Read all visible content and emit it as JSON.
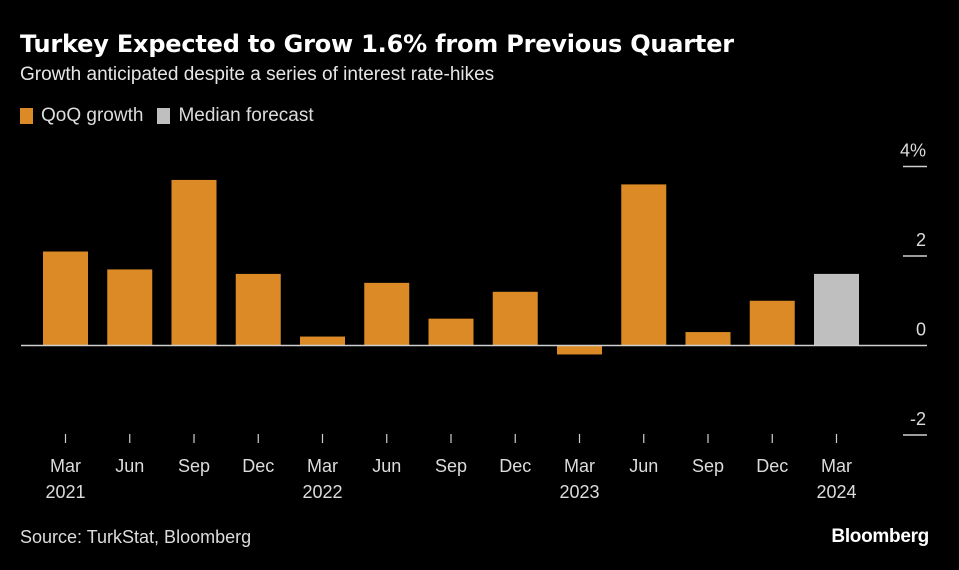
{
  "header": {
    "title": "Turkey Expected to Grow 1.6% from Previous Quarter",
    "subtitle": "Growth anticipated despite a series of interest rate-hikes"
  },
  "legend": [
    {
      "label": "QoQ growth",
      "color": "#DB8A26"
    },
    {
      "label": "Median forecast",
      "color": "#BFBFBF"
    }
  ],
  "footer": {
    "source": "Source: TurkStat, Bloomberg",
    "brand": "Bloomberg"
  },
  "chart_data": {
    "type": "bar",
    "title": "Turkey Expected to Grow 1.6% from Previous Quarter",
    "subtitle": "Growth anticipated despite a series of interest rate-hikes",
    "xlabel": "",
    "ylabel": "",
    "ylim": [
      -2,
      4
    ],
    "yticks": [
      {
        "value": 4,
        "label": "4%"
      },
      {
        "value": 2,
        "label": "2"
      },
      {
        "value": 0,
        "label": "0"
      },
      {
        "value": -2,
        "label": "-2"
      }
    ],
    "categories": [
      "Mar 2021",
      "Jun 2021",
      "Sep 2021",
      "Dec 2021",
      "Mar 2022",
      "Jun 2022",
      "Sep 2022",
      "Dec 2022",
      "Mar 2023",
      "Jun 2023",
      "Sep 2023",
      "Dec 2023",
      "Mar 2024"
    ],
    "x_tick_labels": [
      {
        "month": "Mar",
        "year": "2021"
      },
      {
        "month": "Jun",
        "year": ""
      },
      {
        "month": "Sep",
        "year": ""
      },
      {
        "month": "Dec",
        "year": ""
      },
      {
        "month": "Mar",
        "year": "2022"
      },
      {
        "month": "Jun",
        "year": ""
      },
      {
        "month": "Sep",
        "year": ""
      },
      {
        "month": "Dec",
        "year": ""
      },
      {
        "month": "Mar",
        "year": "2023"
      },
      {
        "month": "Jun",
        "year": ""
      },
      {
        "month": "Sep",
        "year": ""
      },
      {
        "month": "Dec",
        "year": ""
      },
      {
        "month": "Mar",
        "year": "2024"
      }
    ],
    "series": [
      {
        "name": "QoQ growth",
        "color": "#DB8A26",
        "values": [
          2.1,
          1.7,
          3.7,
          1.6,
          0.2,
          1.4,
          0.6,
          1.2,
          -0.2,
          3.6,
          0.3,
          1.0,
          null
        ]
      },
      {
        "name": "Median forecast",
        "color": "#BFBFBF",
        "values": [
          null,
          null,
          null,
          null,
          null,
          null,
          null,
          null,
          null,
          null,
          null,
          null,
          1.6
        ]
      }
    ],
    "grid": false,
    "legend_position": "top-left",
    "y_axis_position": "right"
  }
}
